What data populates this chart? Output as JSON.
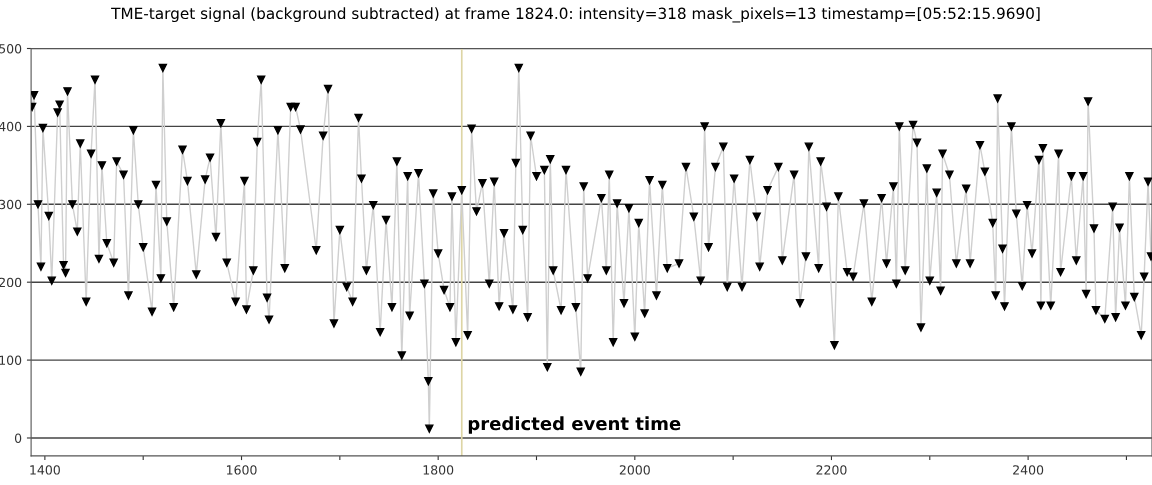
{
  "chart_data": {
    "type": "line",
    "title": "TME-target signal (background subtracted) at frame 1824.0: intensity=318 mask_pixels=13 timestamp=[05:52:15.9690]",
    "x": [
      1387,
      1389,
      1393,
      1396,
      1398,
      1404,
      1407,
      1413,
      1415,
      1419,
      1421,
      1423,
      1428,
      1433,
      1436,
      1442,
      1447,
      1451,
      1455,
      1458,
      1463,
      1470,
      1473,
      1480,
      1485,
      1490,
      1495,
      1500,
      1509,
      1513,
      1518,
      1520,
      1524,
      1531,
      1540,
      1545,
      1554,
      1563,
      1568,
      1574,
      1579,
      1585,
      1594,
      1603,
      1605,
      1612,
      1616,
      1620,
      1626,
      1628,
      1637,
      1644,
      1650,
      1655,
      1660,
      1676,
      1683,
      1688,
      1694,
      1700,
      1707,
      1713,
      1719,
      1722,
      1727,
      1734,
      1741,
      1747,
      1753,
      1758,
      1763,
      1769,
      1771,
      1780,
      1786,
      1790,
      1791,
      1795,
      1800,
      1806,
      1812,
      1814,
      1818,
      1824,
      1830,
      1834,
      1839,
      1845,
      1852,
      1857,
      1862,
      1867,
      1876,
      1879,
      1882,
      1886,
      1891,
      1894,
      1900,
      1908,
      1911,
      1914,
      1917,
      1925,
      1930,
      1940,
      1945,
      1948,
      1952,
      1966,
      1971,
      1974,
      1978,
      1982,
      1989,
      1994,
      2000,
      2004,
      2010,
      2015,
      2022,
      2028,
      2033,
      2045,
      2052,
      2060,
      2067,
      2071,
      2075,
      2082,
      2090,
      2094,
      2101,
      2109,
      2117,
      2124,
      2127,
      2135,
      2146,
      2150,
      2162,
      2168,
      2174,
      2177,
      2187,
      2189,
      2195,
      2203,
      2207,
      2216,
      2222,
      2233,
      2241,
      2251,
      2256,
      2263,
      2266,
      2269,
      2275,
      2283,
      2287,
      2291,
      2297,
      2300,
      2307,
      2311,
      2313,
      2320,
      2327,
      2337,
      2341,
      2351,
      2356,
      2364,
      2367,
      2369,
      2374,
      2376,
      2383,
      2388,
      2394,
      2399,
      2404,
      2411,
      2413,
      2415,
      2423,
      2431,
      2433,
      2444,
      2449,
      2456,
      2459,
      2461,
      2467,
      2469,
      2478,
      2486,
      2489,
      2493,
      2499,
      2503,
      2508,
      2515,
      2518,
      2522,
      2525
    ],
    "series": [
      {
        "color": "#000000",
        "values": [
          425,
          440,
          300,
          220,
          398,
          285,
          202,
          418,
          428,
          222,
          212,
          445,
          300,
          265,
          378,
          175,
          365,
          460,
          230,
          350,
          250,
          225,
          355,
          338,
          183,
          395,
          300,
          245,
          162,
          325,
          205,
          475,
          278,
          168,
          370,
          330,
          210,
          332,
          360,
          258,
          404,
          225,
          175,
          330,
          165,
          215,
          380,
          460,
          180,
          152,
          395,
          218,
          425,
          425,
          396,
          241,
          388,
          448,
          147,
          267,
          194,
          175,
          411,
          333,
          215,
          299,
          136,
          280,
          168,
          355,
          106,
          336,
          157,
          340,
          198,
          73,
          12,
          314,
          237,
          190,
          168,
          310,
          123,
          318,
          132,
          397,
          291,
          327,
          198,
          329,
          169,
          263,
          165,
          353,
          475,
          267,
          155,
          388,
          336,
          344,
          91,
          358,
          215,
          164,
          344,
          168,
          85,
          323,
          205,
          308,
          215,
          338,
          123,
          301,
          173,
          295,
          130,
          276,
          160,
          331,
          183,
          325,
          218,
          224,
          348,
          284,
          202,
          400,
          245,
          348,
          374,
          194,
          333,
          194,
          357,
          284,
          220,
          318,
          348,
          228,
          338,
          173,
          233,
          374,
          218,
          355,
          297,
          119,
          310,
          213,
          207,
          301,
          175,
          308,
          224,
          323,
          198,
          400,
          215,
          402,
          379,
          142,
          346,
          202,
          315,
          189,
          365,
          338,
          224,
          320,
          224,
          376,
          342,
          276,
          183,
          436,
          243,
          169,
          400,
          288,
          195,
          299,
          237,
          357,
          170,
          372,
          170,
          365,
          213,
          336,
          228,
          336,
          185,
          432,
          269,
          164,
          153,
          297,
          155,
          270,
          170,
          336,
          181,
          132,
          207,
          329,
          233
        ]
      }
    ],
    "xlim": [
      1386,
      2526
    ],
    "ylim": [
      -23,
      500
    ],
    "xticks": [
      1400,
      {
        "value": 1500,
        "label": null
      },
      1600,
      {
        "value": 1700,
        "label": null
      },
      1800,
      {
        "value": 1900,
        "label": null
      },
      2000,
      {
        "value": 2100,
        "label": null
      },
      2200,
      {
        "value": 2300,
        "label": null
      },
      2400,
      {
        "value": 2500,
        "label": null
      }
    ],
    "yticks": [
      0,
      100,
      200,
      300,
      400,
      500
    ],
    "grid": "y",
    "marker": "triangle",
    "line_style": "solid",
    "ref_lines": [
      {
        "axis": "x",
        "value": 1824,
        "label": "predicted event time",
        "color": "#ddd5a5"
      }
    ]
  }
}
